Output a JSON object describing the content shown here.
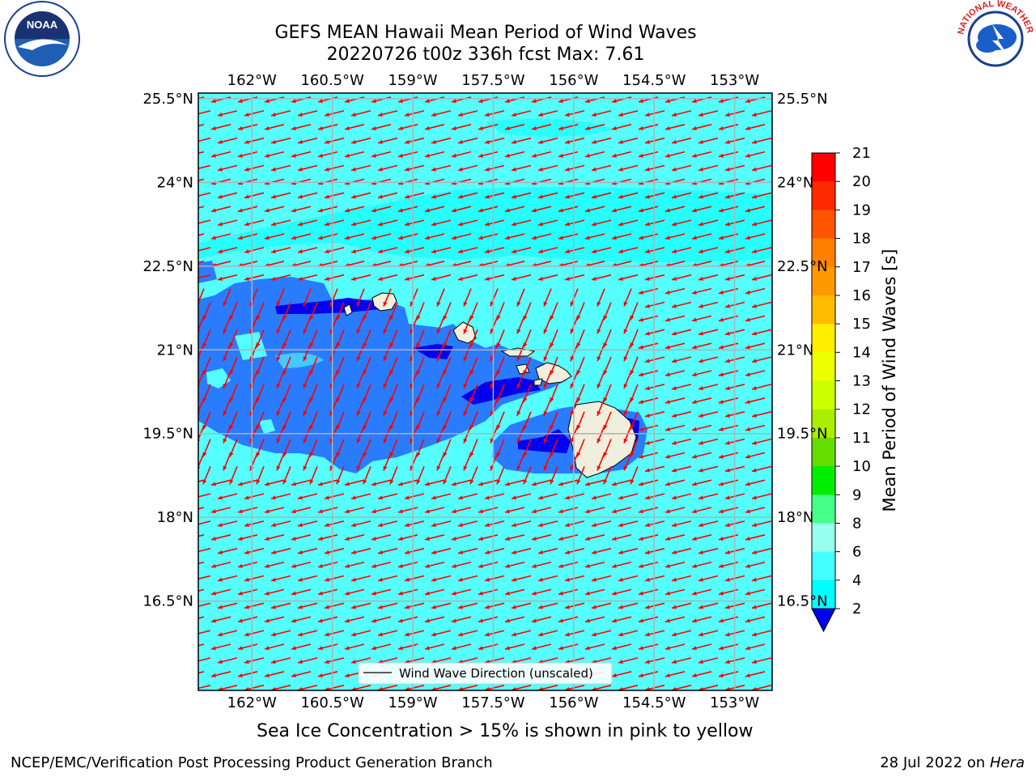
{
  "header": {
    "title_line1": "GEFS MEAN Hawaii Mean Period of Wind Waves",
    "title_line2": "20220726 t00z 336h fcst   Max: 7.61"
  },
  "logos": {
    "noaa": {
      "text": "NOAA",
      "ring_text": "NATIONAL OCEANIC AND ATMOSPHERIC ADMINISTRATION · U.S. DEPARTMENT OF COMMERCE"
    },
    "nws": {
      "ring_text": "NATIONAL WEATHER SERVICE"
    }
  },
  "axes": {
    "lon_labels": [
      "162°W",
      "160.5°W",
      "159°W",
      "157.5°W",
      "156°W",
      "154.5°W",
      "153°W"
    ],
    "lat_labels": [
      "25.5°N",
      "24°N",
      "22.5°N",
      "21°N",
      "19.5°N",
      "18°N",
      "16.5°N"
    ],
    "lon_values": [
      -162,
      -160.5,
      -159,
      -157.5,
      -156,
      -154.5,
      -153
    ],
    "lat_values": [
      25.5,
      24,
      22.5,
      21,
      19.5,
      18,
      16.5
    ],
    "lon_range": [
      -163.0,
      -152.3
    ],
    "lat_range": [
      14.9,
      25.6
    ]
  },
  "legend": {
    "label": "Wind Wave Direction (unscaled)"
  },
  "colorbar": {
    "label": "Mean Period of Wind Waves [s]",
    "ticks": [
      "21",
      "20",
      "19",
      "18",
      "17",
      "16",
      "15",
      "14",
      "13",
      "12",
      "11",
      "10",
      "9",
      "8",
      "6",
      "4",
      "2"
    ],
    "colors": [
      "#ff0000",
      "#ff2a00",
      "#ff5500",
      "#ff7f00",
      "#ff9900",
      "#ffbb00",
      "#ffee00",
      "#eeff00",
      "#ccff00",
      "#aaee00",
      "#66dd00",
      "#00ee00",
      "#44ff88",
      "#99ffee",
      "#44ffff",
      "#00ffff",
      "#0077ff"
    ],
    "under_color": "#0000ee"
  },
  "map_colors": {
    "ocean_light": "#55ffff",
    "ocean_cyan": "#00ffff",
    "ocean_blue": "#2a7cff",
    "ocean_dark": "#0000ee",
    "land": "#f0eedc",
    "arrow": "#ff0000",
    "grid": "#b0b0b0"
  },
  "footer": {
    "note": "Sea Ice Concentration > 15% is shown in pink to yellow",
    "left": "NCEP/EMC/Verification Post Processing Product Generation Branch",
    "right_date": "28 Jul 2022 on ",
    "right_machine": "Hera"
  }
}
